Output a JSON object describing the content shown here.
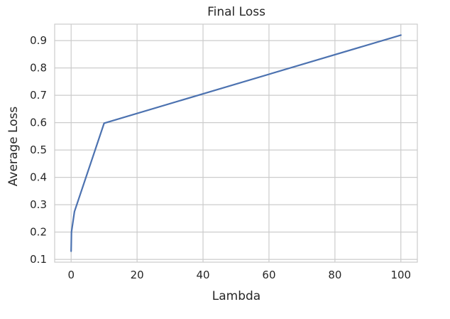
{
  "chart_data": {
    "type": "line",
    "title": "Final Loss",
    "xlabel": "Lambda",
    "ylabel": "Average Loss",
    "xlim": [
      -5,
      105
    ],
    "ylim": [
      0.09,
      0.96
    ],
    "xticks": [
      0,
      20,
      40,
      60,
      80,
      100
    ],
    "yticks": [
      0.1,
      0.2,
      0.3,
      0.4,
      0.5,
      0.6,
      0.7,
      0.8,
      0.9
    ],
    "grid": true,
    "series": [
      {
        "color": "#4c72b0",
        "x": [
          0,
          0.1,
          1,
          10,
          100
        ],
        "y": [
          0.13,
          0.2,
          0.275,
          0.598,
          0.92
        ]
      }
    ]
  }
}
